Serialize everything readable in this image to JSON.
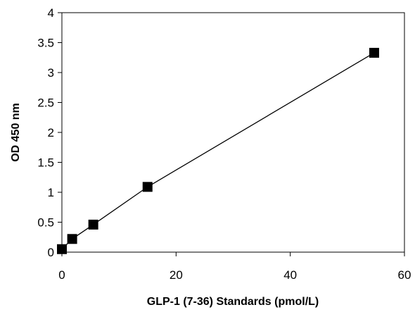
{
  "chart_data": {
    "type": "line",
    "title": "",
    "xlabel": "GLP-1 (7-36) Standards (pmol/L)",
    "ylabel": "OD 450 nm",
    "xlim": [
      0,
      60
    ],
    "ylim": [
      0,
      4
    ],
    "xticks": [
      0,
      20,
      40,
      60
    ],
    "yticks": [
      0,
      0.5,
      1,
      1.5,
      2,
      2.5,
      3,
      3.5,
      4
    ],
    "xtick_labels": [
      "0",
      "20",
      "40",
      "60"
    ],
    "ytick_labels": [
      "0",
      "0.5",
      "1",
      "1.5",
      "2",
      "2.5",
      "3",
      "3.5",
      "4"
    ],
    "grid": false,
    "legend": false,
    "marker": "square",
    "series": [
      {
        "x": [
          0,
          1.8,
          5.5,
          15,
          54.7
        ],
        "y": [
          0.05,
          0.22,
          0.46,
          1.09,
          3.33
        ],
        "color": "#000000"
      }
    ]
  }
}
